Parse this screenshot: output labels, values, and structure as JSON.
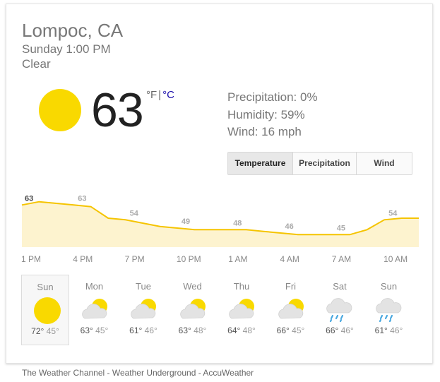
{
  "location": "Lompoc, CA",
  "datetime": "Sunday 1:00 PM",
  "condition": "Clear",
  "current": {
    "icon": "sun-icon",
    "temperature": "63",
    "unit_f": "°F",
    "unit_sep": "|",
    "unit_c": "°C"
  },
  "details": {
    "precipitation": "Precipitation: 0%",
    "humidity": "Humidity: 59%",
    "wind": "Wind: 16 mph"
  },
  "tabs": [
    {
      "label": "Temperature",
      "active": true
    },
    {
      "label": "Precipitation",
      "active": false
    },
    {
      "label": "Wind",
      "active": false
    }
  ],
  "chart_data": {
    "type": "area",
    "x": [
      "1 PM",
      "2 PM",
      "3 PM",
      "4 PM",
      "5 PM",
      "6 PM",
      "7 PM",
      "8 PM",
      "9 PM",
      "10 PM",
      "11 PM",
      "12 AM",
      "1 AM",
      "2 AM",
      "3 AM",
      "4 AM",
      "5 AM",
      "6 AM",
      "7 AM",
      "8 AM",
      "9 AM",
      "10 AM",
      "11 AM",
      "12 PM"
    ],
    "values": [
      63,
      65,
      64,
      63,
      62,
      55,
      54,
      52,
      50,
      49,
      48,
      48,
      48,
      48,
      47,
      46,
      45,
      45,
      45,
      45,
      48,
      54,
      55,
      55
    ],
    "labeled_values": [
      63,
      63,
      54,
      49,
      48,
      46,
      45,
      54
    ],
    "tick_labels": [
      "1 PM",
      "4 PM",
      "7 PM",
      "10 PM",
      "1 AM",
      "4 AM",
      "7 AM",
      "10 AM"
    ],
    "ylim": [
      40,
      70
    ],
    "line_color": "#f5c400",
    "fill_color": "#fdf3cf"
  },
  "days": [
    {
      "name": "Sun",
      "icon": "sun-icon",
      "high": "72°",
      "low": "45°",
      "selected": true
    },
    {
      "name": "Mon",
      "icon": "partly-cloudy-icon",
      "high": "63°",
      "low": "45°",
      "selected": false
    },
    {
      "name": "Tue",
      "icon": "partly-cloudy-icon",
      "high": "61°",
      "low": "46°",
      "selected": false
    },
    {
      "name": "Wed",
      "icon": "partly-cloudy-icon",
      "high": "63°",
      "low": "48°",
      "selected": false
    },
    {
      "name": "Thu",
      "icon": "partly-cloudy-icon",
      "high": "64°",
      "low": "48°",
      "selected": false
    },
    {
      "name": "Fri",
      "icon": "partly-cloudy-icon",
      "high": "66°",
      "low": "45°",
      "selected": false
    },
    {
      "name": "Sat",
      "icon": "rain-icon",
      "high": "66°",
      "low": "46°",
      "selected": false
    },
    {
      "name": "Sun",
      "icon": "rain-icon",
      "high": "61°",
      "low": "46°",
      "selected": false
    }
  ],
  "sources": "The Weather Channel - Weather Underground - AccuWeather",
  "colors": {
    "sun": "#f9d900",
    "cloud": "#e3e3e3",
    "rain": "#4aa8e0",
    "link": "#1a0dab"
  }
}
